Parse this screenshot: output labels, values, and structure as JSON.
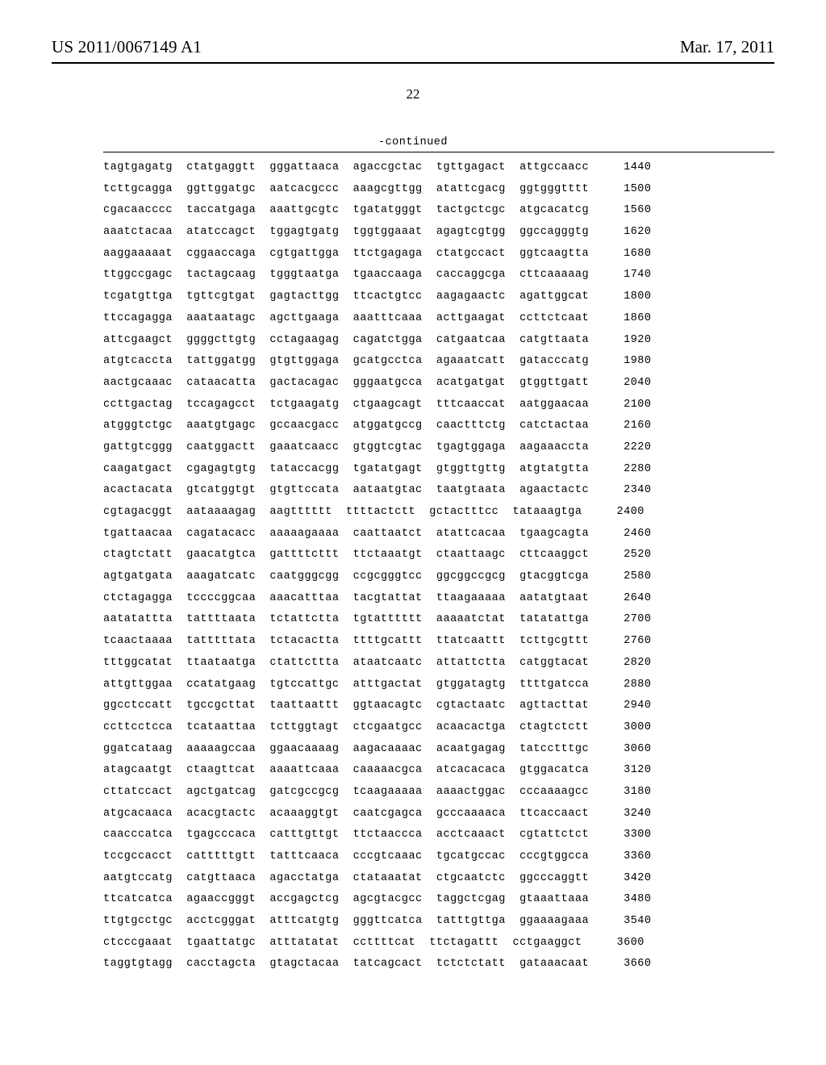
{
  "header": {
    "publication_number": "US 2011/0067149 A1",
    "publication_date": "Mar. 17, 2011"
  },
  "page_number": "22",
  "continued_label": "-continued",
  "sequence": {
    "group_gap": "  ",
    "pos_gap": "     ",
    "rows": [
      {
        "groups": [
          "tagtgagatg",
          "ctatgaggtt",
          "gggattaaca",
          "agaccgctac",
          "tgttgagact",
          "attgccaacc"
        ],
        "pos": 1440
      },
      {
        "groups": [
          "tcttgcagga",
          "ggttggatgc",
          "aatcacgccc",
          "aaagcgttgg",
          "atattcgacg",
          "ggtgggtttt"
        ],
        "pos": 1500
      },
      {
        "groups": [
          "cgacaacccc",
          "taccatgaga",
          "aaattgcgtc",
          "tgatatgggt",
          "tactgctcgc",
          "atgcacatcg"
        ],
        "pos": 1560
      },
      {
        "groups": [
          "aaatctacaa",
          "atatccagct",
          "tggagtgatg",
          "tggtggaaat",
          "agagtcgtgg",
          "ggccagggtg"
        ],
        "pos": 1620
      },
      {
        "groups": [
          "aaggaaaaat",
          "cggaaccaga",
          "cgtgattgga",
          "ttctgagaga",
          "ctatgccact",
          "ggtcaagtta"
        ],
        "pos": 1680
      },
      {
        "groups": [
          "ttggccgagc",
          "tactagcaag",
          "tgggtaatga",
          "tgaaccaaga",
          "caccaggcga",
          "cttcaaaaag"
        ],
        "pos": 1740
      },
      {
        "groups": [
          "tcgatgttga",
          "tgttcgtgat",
          "gagtacttgg",
          "ttcactgtcc",
          "aagagaactc",
          "agattggcat"
        ],
        "pos": 1800
      },
      {
        "groups": [
          "ttccagagga",
          "aaataatagc",
          "agcttgaaga",
          "aaatttcaaa",
          "acttgaagat",
          "ccttctcaat"
        ],
        "pos": 1860
      },
      {
        "groups": [
          "attcgaagct",
          "ggggcttgtg",
          "cctagaagag",
          "cagatctgga",
          "catgaatcaa",
          "catgttaata"
        ],
        "pos": 1920
      },
      {
        "groups": [
          "atgtcaccta",
          "tattggatgg",
          "gtgttggaga",
          "gcatgcctca",
          "agaaatcatt",
          "gatacccatg"
        ],
        "pos": 1980
      },
      {
        "groups": [
          "aactgcaaac",
          "cataacatta",
          "gactacagac",
          "gggaatgcca",
          "acatgatgat",
          "gtggttgatt"
        ],
        "pos": 2040
      },
      {
        "groups": [
          "ccttgactag",
          "tccagagcct",
          "tctgaagatg",
          "ctgaagcagt",
          "tttcaaccat",
          "aatggaacaa"
        ],
        "pos": 2100
      },
      {
        "groups": [
          "atgggtctgc",
          "aaatgtgagc",
          "gccaacgacc",
          "atggatgccg",
          "caactttctg",
          "catctactaa"
        ],
        "pos": 2160
      },
      {
        "groups": [
          "gattgtcggg",
          "caatggactt",
          "gaaatcaacc",
          "gtggtcgtac",
          "tgagtggaga",
          "aagaaaccta"
        ],
        "pos": 2220
      },
      {
        "groups": [
          "caagatgact",
          "cgagagtgtg",
          "tataccacgg",
          "tgatatgagt",
          "gtggttgttg",
          "atgtatgtta"
        ],
        "pos": 2280
      },
      {
        "groups": [
          "acactacata",
          "gtcatggtgt",
          "gtgttccata",
          "aataatgtac",
          "taatgtaata",
          "agaactactc"
        ],
        "pos": 2340
      },
      {
        "groups": [
          "cgtagacggt",
          "aataaaagag",
          "aagtttttt",
          "ttttactctt",
          "gctactttcc",
          "tataaagtga"
        ],
        "pos": 2400
      },
      {
        "groups": [
          "tgattaacaa",
          "cagatacacc",
          "aaaaagaaaa",
          "caattaatct",
          "atattcacaa",
          "tgaagcagta"
        ],
        "pos": 2460
      },
      {
        "groups": [
          "ctagtctatt",
          "gaacatgtca",
          "gattttcttt",
          "ttctaaatgt",
          "ctaattaagc",
          "cttcaaggct"
        ],
        "pos": 2520
      },
      {
        "groups": [
          "agtgatgata",
          "aaagatcatc",
          "caatgggcgg",
          "ccgcgggtcc",
          "ggcggccgcg",
          "gtacggtcga"
        ],
        "pos": 2580
      },
      {
        "groups": [
          "ctctagagga",
          "tccccggcaa",
          "aaacatttaa",
          "tacgtattat",
          "ttaagaaaaa",
          "aatatgtaat"
        ],
        "pos": 2640
      },
      {
        "groups": [
          "aatatattta",
          "tattttaata",
          "tctattctta",
          "tgtatttttt",
          "aaaaatctat",
          "tatatattga"
        ],
        "pos": 2700
      },
      {
        "groups": [
          "tcaactaaaa",
          "tatttttata",
          "tctacactta",
          "ttttgcattt",
          "ttatcaattt",
          "tcttgcgttt"
        ],
        "pos": 2760
      },
      {
        "groups": [
          "tttggcatat",
          "ttaataatga",
          "ctattcttta",
          "ataatcaatc",
          "attattctta",
          "catggtacat"
        ],
        "pos": 2820
      },
      {
        "groups": [
          "attgttggaa",
          "ccatatgaag",
          "tgtccattgc",
          "atttgactat",
          "gtggatagtg",
          "ttttgatcca"
        ],
        "pos": 2880
      },
      {
        "groups": [
          "ggcctccatt",
          "tgccgcttat",
          "taattaattt",
          "ggtaacagtc",
          "cgtactaatc",
          "agttacttat"
        ],
        "pos": 2940
      },
      {
        "groups": [
          "ccttcctcca",
          "tcataattaa",
          "tcttggtagt",
          "ctcgaatgcc",
          "acaacactga",
          "ctagtctctt"
        ],
        "pos": 3000
      },
      {
        "groups": [
          "ggatcataag",
          "aaaaagccaa",
          "ggaacaaaag",
          "aagacaaaac",
          "acaatgagag",
          "tatcctttgc"
        ],
        "pos": 3060
      },
      {
        "groups": [
          "atagcaatgt",
          "ctaagttcat",
          "aaaattcaaa",
          "caaaaacgca",
          "atcacacaca",
          "gtggacatca"
        ],
        "pos": 3120
      },
      {
        "groups": [
          "cttatccact",
          "agctgatcag",
          "gatcgccgcg",
          "tcaagaaaaa",
          "aaaactggac",
          "cccaaaagcc"
        ],
        "pos": 3180
      },
      {
        "groups": [
          "atgcacaaca",
          "acacgtactc",
          "acaaaggtgt",
          "caatcgagca",
          "gcccaaaaca",
          "ttcaccaact"
        ],
        "pos": 3240
      },
      {
        "groups": [
          "caacccatca",
          "tgagcccaca",
          "catttgttgt",
          "ttctaaccca",
          "acctcaaact",
          "cgtattctct"
        ],
        "pos": 3300
      },
      {
        "groups": [
          "tccgccacct",
          "catttttgtt",
          "tatttcaaca",
          "cccgtcaaac",
          "tgcatgccac",
          "cccgtggcca"
        ],
        "pos": 3360
      },
      {
        "groups": [
          "aatgtccatg",
          "catgttaaca",
          "agacctatga",
          "ctataaatat",
          "ctgcaatctc",
          "ggcccaggtt"
        ],
        "pos": 3420
      },
      {
        "groups": [
          "ttcatcatca",
          "agaaccgggt",
          "accgagctcg",
          "agcgtacgcc",
          "taggctcgag",
          "gtaaattaaa"
        ],
        "pos": 3480
      },
      {
        "groups": [
          "ttgtgcctgc",
          "acctcgggat",
          "atttcatgtg",
          "gggttcatca",
          "tatttgttga",
          "ggaaaagaaa"
        ],
        "pos": 3540
      },
      {
        "groups": [
          "ctcccgaaat",
          "tgaattatgc",
          "atttatatat",
          "ccttttcat",
          "ttctagattt",
          "cctgaaggct"
        ],
        "pos": 3600
      },
      {
        "groups": [
          "taggtgtagg",
          "cacctagcta",
          "gtagctacaa",
          "tatcagcact",
          "tctctctatt",
          "gataaacaat"
        ],
        "pos": 3660
      }
    ]
  }
}
